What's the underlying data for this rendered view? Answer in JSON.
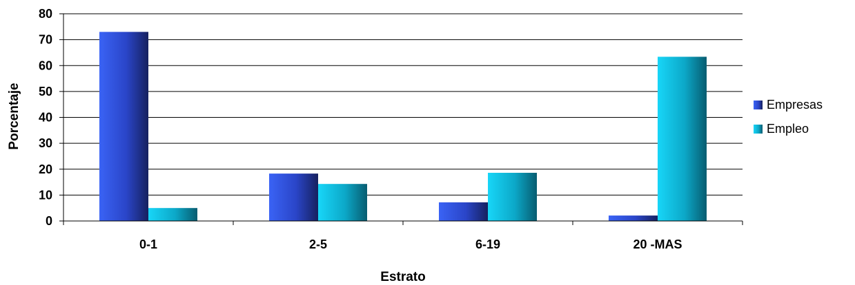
{
  "chart_data": {
    "type": "bar",
    "categories": [
      "0-1",
      "2-5",
      "6-19",
      "20 -MAS"
    ],
    "series": [
      {
        "name": "Empresas",
        "values": [
          73,
          18.3,
          7.2,
          2.1
        ],
        "color": "#2F50E0"
      },
      {
        "name": "Empleo",
        "values": [
          5,
          14.3,
          18.6,
          63.4
        ],
        "color": "#12C8EC"
      }
    ],
    "xlabel": "Estrato",
    "ylabel": "Porcentaje",
    "ylim": [
      0,
      80
    ],
    "yticks": [
      0,
      10,
      20,
      30,
      40,
      50,
      60,
      70,
      80
    ],
    "grid": true,
    "legend_position": "right"
  }
}
